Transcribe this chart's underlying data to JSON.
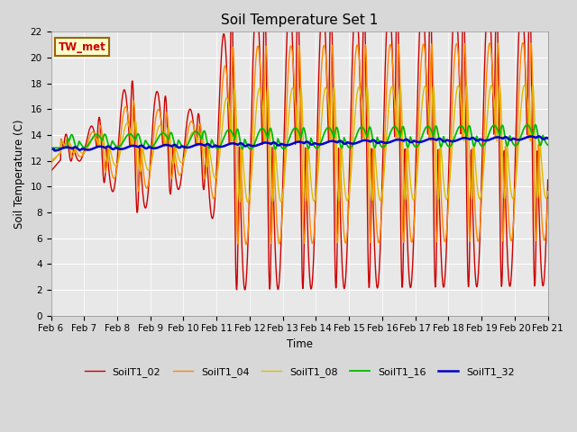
{
  "title": "Soil Temperature Set 1",
  "xlabel": "Time",
  "ylabel": "Soil Temperature (C)",
  "ylim": [
    0,
    22
  ],
  "date_labels": [
    "Feb 6",
    "Feb 7",
    "Feb 8",
    "Feb 9",
    "Feb 10",
    "Feb 11",
    "Feb 12",
    "Feb 13",
    "Feb 14",
    "Feb 15",
    "Feb 16",
    "Feb 17",
    "Feb 18",
    "Feb 19",
    "Feb 20",
    "Feb 21"
  ],
  "series_colors": [
    "#cc0000",
    "#ff8800",
    "#ddbb00",
    "#00bb00",
    "#0000cc"
  ],
  "series_names": [
    "SoilT1_02",
    "SoilT1_04",
    "SoilT1_08",
    "SoilT1_16",
    "SoilT1_32"
  ],
  "annotation_text": "TW_met",
  "annotation_color": "#cc0000",
  "annotation_bg": "#ffffcc",
  "annotation_edge": "#996600",
  "bg_color": "#d8d8d8",
  "plot_bg": "#e8e8e8",
  "title_fontsize": 11
}
